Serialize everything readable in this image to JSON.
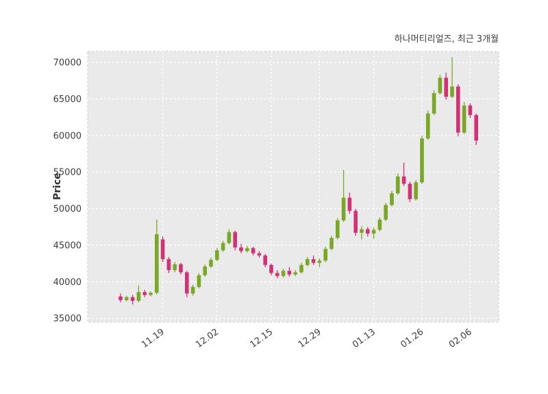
{
  "header": {
    "title": "하나머티리얼즈, 최근 3개월"
  },
  "chart_data": {
    "type": "candlestick",
    "title": "하나머티리얼즈, 최근 3개월",
    "ylabel": "Price",
    "ylim": [
      34500,
      71500
    ],
    "yticks": [
      35000,
      40000,
      45000,
      50000,
      55000,
      60000,
      65000,
      70000
    ],
    "xticks": [
      {
        "index": 7,
        "label": "11.19"
      },
      {
        "index": 16,
        "label": "12.02"
      },
      {
        "index": 25,
        "label": "12.15"
      },
      {
        "index": 33,
        "label": "12.29"
      },
      {
        "index": 42,
        "label": "01.13"
      },
      {
        "index": 50,
        "label": "01.26"
      },
      {
        "index": 58,
        "label": "02.06"
      }
    ],
    "grid": {
      "on": true,
      "style": "dashed",
      "color": "#ffffff"
    },
    "legend_position": "none",
    "colors": {
      "up": "#79a824",
      "down": "#d43077",
      "plot_bg": "#eaeaea",
      "page_bg": "#ffffff",
      "tick_text": "#3d3d3d",
      "border": "#c9c9c9"
    },
    "ohlc_order": "open,high,low,close",
    "candles": [
      [
        38000,
        38400,
        37200,
        37500
      ],
      [
        37500,
        38100,
        37300,
        37900
      ],
      [
        37900,
        38200,
        36900,
        37400
      ],
      [
        37400,
        39500,
        37200,
        38600
      ],
      [
        38600,
        38900,
        37900,
        38200
      ],
      [
        38200,
        38700,
        38000,
        38500
      ],
      [
        38500,
        48500,
        38300,
        46500
      ],
      [
        45800,
        46200,
        42700,
        43100
      ],
      [
        43100,
        43400,
        41200,
        41600
      ],
      [
        41600,
        42700,
        41300,
        42400
      ],
      [
        42400,
        42600,
        41000,
        41300
      ],
      [
        41300,
        41500,
        37900,
        38400
      ],
      [
        38400,
        39600,
        38100,
        39300
      ],
      [
        39300,
        41200,
        39100,
        40900
      ],
      [
        40900,
        42400,
        40700,
        42100
      ],
      [
        42100,
        43300,
        41900,
        43000
      ],
      [
        43000,
        44600,
        42800,
        44300
      ],
      [
        44300,
        45600,
        44100,
        45300
      ],
      [
        45300,
        47200,
        45100,
        46800
      ],
      [
        46800,
        47000,
        44300,
        44700
      ],
      [
        44700,
        45200,
        43900,
        44200
      ],
      [
        44200,
        44900,
        44000,
        44600
      ],
      [
        44600,
        44800,
        43600,
        43900
      ],
      [
        43900,
        44200,
        43300,
        43600
      ],
      [
        43600,
        43800,
        42000,
        42300
      ],
      [
        42300,
        42500,
        40900,
        41200
      ],
      [
        41200,
        41600,
        40500,
        40800
      ],
      [
        40800,
        41800,
        40600,
        41500
      ],
      [
        41500,
        42000,
        40700,
        41000
      ],
      [
        41000,
        41600,
        40800,
        41300
      ],
      [
        41300,
        42600,
        41100,
        42300
      ],
      [
        42300,
        43400,
        42100,
        43100
      ],
      [
        43100,
        43600,
        42300,
        42600
      ],
      [
        42600,
        43200,
        42000,
        42900
      ],
      [
        42900,
        44800,
        42700,
        44500
      ],
      [
        44500,
        46300,
        44300,
        46000
      ],
      [
        46000,
        48700,
        45800,
        48400
      ],
      [
        48400,
        55300,
        48200,
        51500
      ],
      [
        51500,
        52200,
        49300,
        49700
      ],
      [
        49700,
        50000,
        46300,
        46700
      ],
      [
        46700,
        47600,
        45800,
        47200
      ],
      [
        47200,
        47500,
        46200,
        46600
      ],
      [
        46600,
        47400,
        45900,
        47100
      ],
      [
        47100,
        48800,
        46900,
        48500
      ],
      [
        48500,
        50800,
        48300,
        50500
      ],
      [
        50500,
        52400,
        50300,
        52100
      ],
      [
        52100,
        54800,
        51900,
        54400
      ],
      [
        54400,
        56300,
        53100,
        53400
      ],
      [
        53400,
        53700,
        50900,
        51300
      ],
      [
        51300,
        53900,
        51100,
        53600
      ],
      [
        53600,
        60000,
        53400,
        59600
      ],
      [
        59600,
        63400,
        59400,
        63000
      ],
      [
        63000,
        66200,
        62800,
        65800
      ],
      [
        65800,
        68300,
        65600,
        67900
      ],
      [
        67900,
        68600,
        64900,
        65300
      ],
      [
        65300,
        70700,
        65100,
        66700
      ],
      [
        66700,
        67000,
        59900,
        60400
      ],
      [
        60400,
        64600,
        60200,
        64100
      ],
      [
        64100,
        64400,
        62400,
        62800
      ],
      [
        62800,
        63000,
        58700,
        59300
      ]
    ]
  }
}
